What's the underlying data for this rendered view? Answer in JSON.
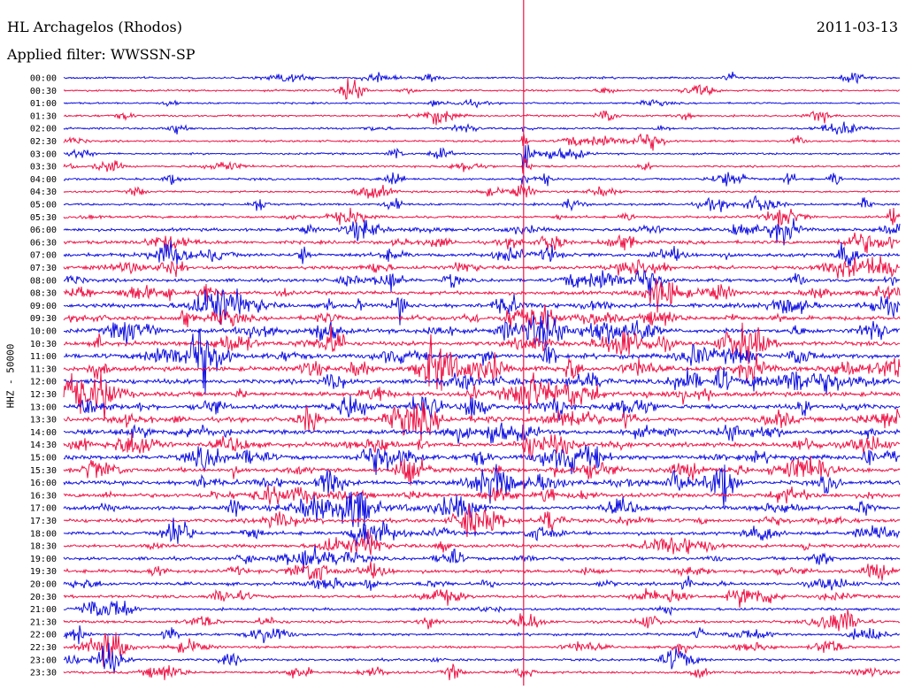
{
  "header": {
    "station": "HL Archagelos (Rhodos)",
    "filter": "Applied filter: WWSSN-SP",
    "date": "2011-03-13"
  },
  "chart_data": {
    "type": "line",
    "title": "HL Archagelos (Rhodos)",
    "subtitle": "Applied filter: WWSSN-SP",
    "date": "2011-03-13",
    "ylabel": "HHZ - 50000",
    "row_times": [
      "00:00",
      "00:30",
      "01:00",
      "01:30",
      "02:00",
      "02:30",
      "03:00",
      "03:30",
      "04:00",
      "04:30",
      "05:00",
      "05:30",
      "06:00",
      "06:30",
      "07:00",
      "07:30",
      "08:00",
      "08:30",
      "09:00",
      "09:30",
      "10:00",
      "10:30",
      "11:00",
      "11:30",
      "12:00",
      "12:30",
      "13:00",
      "13:30",
      "14:00",
      "14:30",
      "15:00",
      "15:30",
      "16:00",
      "16:30",
      "17:00",
      "17:30",
      "18:00",
      "18:30",
      "19:00",
      "19:30",
      "20:00",
      "20:30",
      "21:00",
      "21:30",
      "22:00",
      "22:30",
      "23:00",
      "23:30"
    ],
    "trace_colors": [
      "#1010e0",
      "#ee1446"
    ],
    "row_noise_level": [
      0.3,
      0.3,
      0.2,
      0.3,
      0.3,
      0.3,
      0.3,
      0.3,
      0.4,
      0.3,
      0.4,
      0.5,
      0.8,
      0.9,
      1.0,
      0.9,
      0.9,
      1.0,
      1.2,
      1.2,
      1.3,
      1.3,
      1.4,
      1.4,
      1.4,
      1.4,
      1.4,
      1.4,
      1.3,
      1.3,
      1.4,
      1.3,
      1.3,
      1.2,
      1.1,
      1.0,
      0.9,
      0.9,
      0.9,
      0.9,
      0.8,
      0.7,
      0.6,
      0.6,
      0.5,
      0.5,
      0.5,
      0.5
    ],
    "large_event": {
      "time": "03:00",
      "minute": 16.5,
      "amplitude_rows": 3.5
    },
    "grid": false,
    "legend": "none"
  }
}
